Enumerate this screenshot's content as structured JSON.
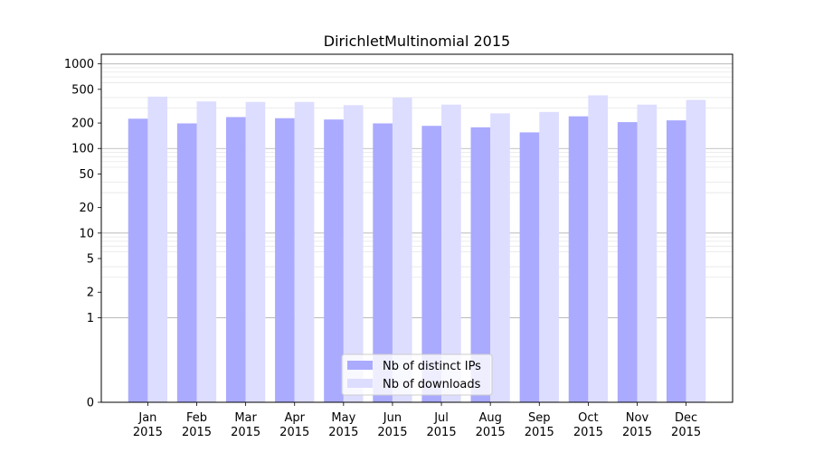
{
  "chart_data": {
    "type": "bar",
    "title": "DirichletMultinomial 2015",
    "xlabel": "",
    "ylabel": "",
    "yscale": "symlog",
    "ylim": [
      0,
      1300
    ],
    "yticks": [
      "0",
      "1",
      "2",
      "5",
      "10",
      "20",
      "50",
      "100",
      "200",
      "500",
      "1000"
    ],
    "grid": true,
    "legend_position": "bottom-center",
    "categories": [
      "Jan\n2015",
      "Feb\n2015",
      "Mar\n2015",
      "Apr\n2015",
      "May\n2015",
      "Jun\n2015",
      "Jul\n2015",
      "Aug\n2015",
      "Sep\n2015",
      "Oct\n2015",
      "Nov\n2015",
      "Dec\n2015"
    ],
    "series": [
      {
        "name": "Nb of distinct IPs",
        "color": "#aaaaff",
        "values": [
          225,
          198,
          235,
          228,
          220,
          198,
          185,
          178,
          155,
          240,
          205,
          215
        ]
      },
      {
        "name": "Nb of downloads",
        "color": "#ddddff",
        "values": [
          410,
          360,
          355,
          355,
          325,
          400,
          330,
          260,
          270,
          425,
          330,
          375
        ]
      }
    ]
  }
}
